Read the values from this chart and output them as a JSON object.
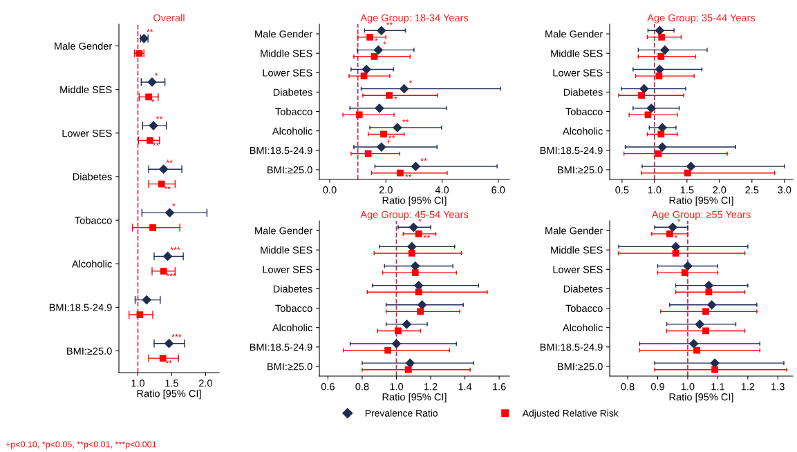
{
  "chart_data": [
    {
      "type": "scatter",
      "orientation": "horizontal",
      "title": "Overall",
      "xlabel": "Ratio [95% CI]",
      "legend": "bottom",
      "marker": "diamond",
      "categories": [
        "Male Gender",
        "Middle SES",
        "Lower SES",
        "Diabetes",
        "Tobacco",
        "Alcoholic",
        "BMI:18.5-24.9",
        "BMI:≥25.0"
      ],
      "xlim": [
        0.72,
        2.2
      ],
      "xticks": [
        {
          "value": 1,
          "label": "1.0"
        },
        {
          "value": 1.5,
          "label": "1.5"
        },
        {
          "value": 2,
          "label": "2.0"
        }
      ],
      "ref_lines": [
        {
          "axis": "x",
          "value": 1,
          "color": "#e0405a",
          "line_style": "dashed"
        }
      ],
      "annotations": [
        "+p<0.10, *p<0.05, **p<0.01, ***p<0.001"
      ],
      "series": [
        {
          "name": "Prevalence Ratio",
          "color": "#1f2d50",
          "values": [
            1.09,
            1.21,
            1.23,
            1.38,
            1.47,
            1.44,
            1.13,
            1.46
          ],
          "errors": [
            [
              1.04,
              1.15
            ],
            [
              1.05,
              1.4
            ],
            [
              1.07,
              1.42
            ],
            [
              1.16,
              1.65
            ],
            [
              1.06,
              2.02
            ],
            [
              1.24,
              1.67
            ],
            [
              0.96,
              1.33
            ],
            [
              1.24,
              1.69
            ]
          ],
          "value_labels": [
            "**",
            "*",
            "**",
            "**",
            "*",
            "***",
            null,
            "***"
          ]
        },
        {
          "name": "Adjusted Relative Risk",
          "color": "#ff0000",
          "marker": "square",
          "values": [
            1.02,
            1.16,
            1.18,
            1.35,
            1.22,
            1.38,
            1.03,
            1.37
          ],
          "errors": [
            [
              0.95,
              1.09
            ],
            [
              1.02,
              1.3
            ],
            [
              1.01,
              1.32
            ],
            [
              1.16,
              1.55
            ],
            [
              0.92,
              1.62
            ],
            [
              1.21,
              1.55
            ],
            [
              0.87,
              1.22
            ],
            [
              1.16,
              1.6
            ]
          ],
          "value_labels": [
            null,
            "*",
            "**",
            "**",
            null,
            "***",
            null,
            "**"
          ]
        }
      ]
    },
    {
      "type": "scatter",
      "orientation": "horizontal",
      "title": "Age Group: 18-34 Years",
      "xlabel": "Ratio [95% CI]",
      "marker": "diamond",
      "categories": [
        "Male Gender",
        "Middle SES",
        "Lower SES",
        "Diabetes",
        "Tobacco",
        "Alcoholic",
        "BMI:18.5-24.9",
        "BMI:≥25.0"
      ],
      "xlim": [
        -0.37,
        6.4
      ],
      "xticks": [
        {
          "value": 0,
          "label": "0.0"
        },
        {
          "value": 2,
          "label": "2.0"
        },
        {
          "value": 4,
          "label": "4.0"
        },
        {
          "value": 6,
          "label": "6.0"
        }
      ],
      "ref_lines": [
        {
          "axis": "x",
          "value": 1,
          "color": "#c03060",
          "line_style": "dashed"
        }
      ],
      "series": [
        {
          "name": "Prevalence Ratio",
          "color": "#1f2d50",
          "values": [
            1.84,
            1.73,
            1.31,
            2.65,
            1.77,
            2.41,
            1.84,
            3.06
          ],
          "errors": [
            [
              1.24,
              2.69
            ],
            [
              0.98,
              3.0
            ],
            [
              0.76,
              2.27
            ],
            [
              1.12,
              6.08
            ],
            [
              0.72,
              4.16
            ],
            [
              1.43,
              3.98
            ],
            [
              0.86,
              3.82
            ],
            [
              1.61,
              5.96
            ]
          ],
          "value_labels": [
            "**",
            "*",
            null,
            "*",
            null,
            "**",
            "+",
            "**"
          ]
        },
        {
          "name": "Adjusted Relative Risk",
          "color": "#ff0000",
          "marker": "square",
          "values": [
            1.43,
            1.59,
            1.22,
            2.12,
            1.05,
            1.92,
            1.37,
            2.51
          ],
          "errors": [
            [
              1.0,
              2.0
            ],
            [
              0.86,
              2.86
            ],
            [
              0.69,
              2.14
            ],
            [
              1.18,
              3.84
            ],
            [
              0.47,
              2.29
            ],
            [
              1.37,
              2.65
            ],
            [
              0.76,
              2.49
            ],
            [
              1.49,
              4.18
            ]
          ],
          "value_labels": [
            "*",
            null,
            null,
            "*",
            null,
            "**",
            null,
            "**"
          ]
        }
      ]
    },
    {
      "type": "scatter",
      "orientation": "horizontal",
      "title": "Age Group: 35-44 Years",
      "xlabel": "Ratio [95% CI]",
      "marker": "diamond",
      "categories": [
        "Male Gender",
        "Middle SES",
        "Lower SES",
        "Diabetes",
        "Tobacco",
        "Alcoholic",
        "BMI:18.5-24.9",
        "BMI:≥25.0"
      ],
      "xlim": [
        0.31,
        3.13
      ],
      "xticks": [
        {
          "value": 0.5,
          "label": "0.5"
        },
        {
          "value": 1,
          "label": "1.0"
        },
        {
          "value": 1.5,
          "label": "1.5"
        },
        {
          "value": 2,
          "label": "2.0"
        },
        {
          "value": 2.5,
          "label": "2.5"
        },
        {
          "value": 3,
          "label": "3.0"
        }
      ],
      "ref_lines": [
        {
          "axis": "x",
          "value": 1,
          "color": "#c03060",
          "line_style": "dashed"
        }
      ],
      "series": [
        {
          "name": "Prevalence Ratio",
          "color": "#1f2d50",
          "values": [
            1.08,
            1.16,
            1.08,
            0.84,
            0.95,
            1.12,
            1.12,
            1.56
          ],
          "errors": [
            [
              0.9,
              1.3
            ],
            [
              0.75,
              1.81
            ],
            [
              0.67,
              1.73
            ],
            [
              0.49,
              1.48
            ],
            [
              0.67,
              1.38
            ],
            [
              0.92,
              1.33
            ],
            [
              0.55,
              2.25
            ],
            [
              0.81,
              3.0
            ]
          ]
        },
        {
          "name": "Adjusted Relative Risk",
          "color": "#ff0000",
          "marker": "square",
          "values": [
            1.11,
            1.1,
            1.07,
            0.8,
            0.9,
            1.1,
            1.06,
            1.51
          ],
          "errors": [
            [
              0.89,
              1.41
            ],
            [
              0.75,
              1.63
            ],
            [
              0.71,
              1.61
            ],
            [
              0.45,
              1.45
            ],
            [
              0.61,
              1.35
            ],
            [
              0.89,
              1.35
            ],
            [
              0.53,
              2.12
            ],
            [
              0.8,
              2.85
            ]
          ]
        }
      ]
    },
    {
      "type": "scatter",
      "orientation": "horizontal",
      "title": "Age Group: 45-54 Years",
      "xlabel": "Ratio [95% CI]",
      "marker": "diamond",
      "categories": [
        "Male Gender",
        "Middle SES",
        "Lower SES",
        "Diabetes",
        "Tobacco",
        "Alcoholic",
        "BMI:18.5-24.9",
        "BMI:≥25.0"
      ],
      "xlim": [
        0.55,
        1.66
      ],
      "xticks": [
        {
          "value": 0.6,
          "label": "0.6"
        },
        {
          "value": 0.8,
          "label": "0.8"
        },
        {
          "value": 1,
          "label": "1.0"
        },
        {
          "value": 1.2,
          "label": "1.2"
        },
        {
          "value": 1.4,
          "label": "1.4"
        },
        {
          "value": 1.6,
          "label": "1.6"
        }
      ],
      "ref_lines": [
        {
          "axis": "x",
          "value": 1,
          "color": "#c03060",
          "line_style": "dashed"
        }
      ],
      "series": [
        {
          "name": "Prevalence Ratio",
          "color": "#1f2d50",
          "values": [
            1.1,
            1.09,
            1.11,
            1.13,
            1.15,
            1.06,
            1.0,
            1.08
          ],
          "errors": [
            [
              1.01,
              1.2
            ],
            [
              0.9,
              1.34
            ],
            [
              0.93,
              1.33
            ],
            [
              0.86,
              1.48
            ],
            [
              0.94,
              1.39
            ],
            [
              0.94,
              1.18
            ],
            [
              0.73,
              1.35
            ],
            [
              0.8,
              1.45
            ]
          ],
          "value_labels": [
            "*",
            null,
            null,
            null,
            null,
            null,
            null,
            null
          ]
        },
        {
          "name": "Adjusted Relative Risk",
          "color": "#ff0000",
          "marker": "square",
          "values": [
            1.13,
            1.09,
            1.11,
            1.13,
            1.14,
            1.01,
            0.95,
            1.07
          ],
          "errors": [
            [
              1.04,
              1.23
            ],
            [
              0.87,
              1.38
            ],
            [
              0.92,
              1.35
            ],
            [
              0.83,
              1.53
            ],
            [
              0.94,
              1.37
            ],
            [
              0.89,
              1.14
            ],
            [
              0.69,
              1.31
            ],
            [
              0.8,
              1.43
            ]
          ],
          "value_labels": [
            "**",
            null,
            null,
            null,
            null,
            null,
            null,
            null
          ]
        }
      ]
    },
    {
      "type": "scatter",
      "orientation": "horizontal",
      "title": "Age Group: ≥55 Years",
      "xlabel": "Ratio [95% CI]",
      "marker": "diamond",
      "categories": [
        "Male Gender",
        "Middle SES",
        "Lower SES",
        "Diabetes",
        "Tobacco",
        "Alcoholic",
        "BMI:18.5-24.9",
        "BMI:≥25.0"
      ],
      "xlim": [
        0.74,
        1.35
      ],
      "xticks": [
        {
          "value": 0.8,
          "label": "0.8"
        },
        {
          "value": 0.9,
          "label": "0.9"
        },
        {
          "value": 1,
          "label": "1.0"
        },
        {
          "value": 1.1,
          "label": "1.1"
        },
        {
          "value": 1.2,
          "label": "1.2"
        },
        {
          "value": 1.3,
          "label": "1.3"
        }
      ],
      "ref_lines": [
        {
          "axis": "x",
          "value": 1,
          "color": "#c03060",
          "line_style": "dashed"
        }
      ],
      "series": [
        {
          "name": "Prevalence Ratio",
          "color": "#1f2d50",
          "values": [
            0.95,
            0.96,
            1.0,
            1.07,
            1.08,
            1.04,
            1.02,
            1.09
          ],
          "errors": [
            [
              0.89,
              1.0
            ],
            [
              0.77,
              1.2
            ],
            [
              0.9,
              1.1
            ],
            [
              0.96,
              1.2
            ],
            [
              0.94,
              1.23
            ],
            [
              0.93,
              1.16
            ],
            [
              0.84,
              1.24
            ],
            [
              0.89,
              1.32
            ]
          ],
          "value_labels": [
            "*",
            null,
            null,
            null,
            null,
            null,
            null,
            null
          ]
        },
        {
          "name": "Adjusted Relative Risk",
          "color": "#ff0000",
          "marker": "square",
          "values": [
            0.94,
            0.96,
            0.99,
            1.07,
            1.06,
            1.06,
            1.03,
            1.09
          ],
          "errors": [
            [
              0.88,
              1.0
            ],
            [
              0.77,
              1.19
            ],
            [
              0.9,
              1.1
            ],
            [
              0.96,
              1.19
            ],
            [
              0.91,
              1.23
            ],
            [
              0.93,
              1.19
            ],
            [
              0.84,
              1.24
            ],
            [
              0.89,
              1.33
            ]
          ],
          "value_labels": [
            "*",
            null,
            null,
            null,
            null,
            null,
            null,
            null
          ]
        }
      ]
    }
  ]
}
